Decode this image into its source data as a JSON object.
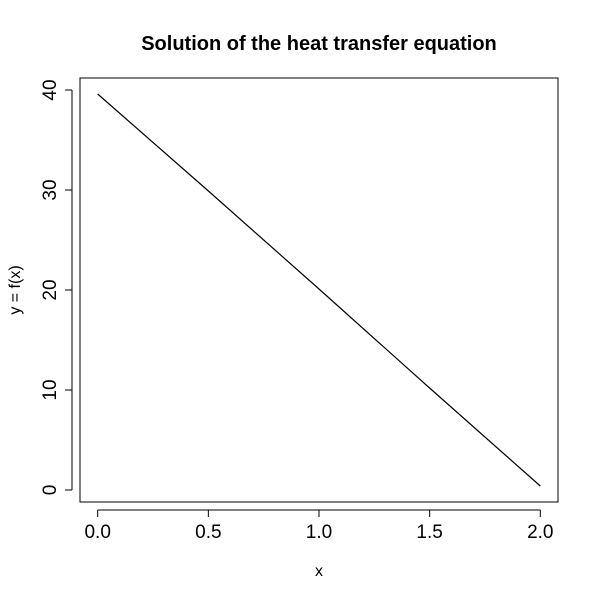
{
  "chart_data": {
    "type": "line",
    "title": "Solution of the heat transfer equation",
    "xlabel": "x",
    "ylabel": "y = f(x)",
    "xlim": [
      -0.08,
      2.08
    ],
    "ylim": [
      -1.2,
      41.2
    ],
    "xticks": [
      "0.0",
      "0.5",
      "1.0",
      "1.5",
      "2.0"
    ],
    "xtick_values": [
      0.0,
      0.5,
      1.0,
      1.5,
      2.0
    ],
    "yticks": [
      "0",
      "10",
      "20",
      "30",
      "40"
    ],
    "ytick_values": [
      0,
      10,
      20,
      30,
      40
    ],
    "grid": false,
    "series": [
      {
        "x": [
          0.0,
          0.5,
          1.0,
          1.5,
          2.0
        ],
        "values": [
          39.6,
          29.9,
          20.1,
          10.2,
          0.4
        ],
        "color": "#000000"
      }
    ]
  }
}
